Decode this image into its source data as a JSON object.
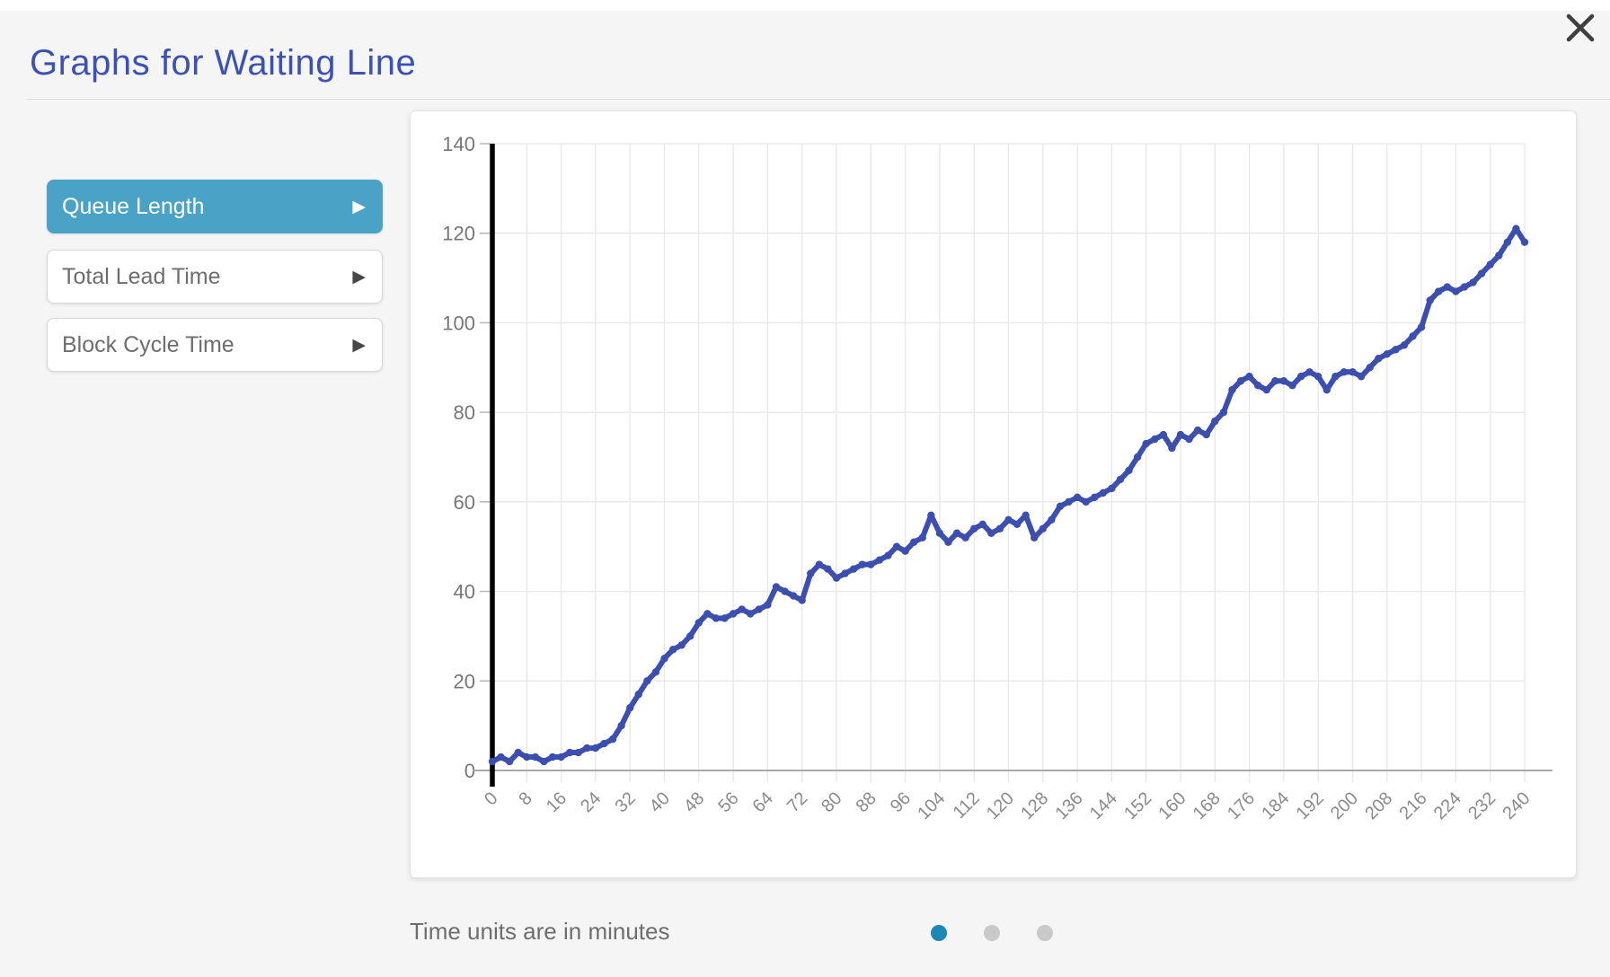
{
  "dialog": {
    "title": "Graphs for Waiting Line",
    "close_icon": "x-close"
  },
  "sidebar": {
    "arrow_icon": "▶",
    "items": [
      {
        "label": "Queue Length",
        "active": true
      },
      {
        "label": "Total Lead Time",
        "active": false
      },
      {
        "label": "Block Cycle Time",
        "active": false
      }
    ]
  },
  "footer": {
    "note": "Time units are in minutes",
    "pager": {
      "count": 3,
      "active": 0
    }
  },
  "colors": {
    "accent_teal": "#4aa3c7",
    "title_indigo": "#3c51b4",
    "line_indigo": "#3c4eae",
    "pager_active": "#1d87b8",
    "pager_inactive": "#c9c9c9",
    "grid": "#e8e8e8",
    "zero_line": "#a9a9a9",
    "axis_black": "#000000",
    "tick_label": "#8a8a8a",
    "y_label": "#767676"
  },
  "chart_data": {
    "type": "line",
    "title": "",
    "xlabel": "",
    "ylabel": "",
    "series_name": "Queue Length",
    "xlim": [
      0,
      240
    ],
    "ylim": [
      0,
      140
    ],
    "grid": true,
    "legend": "none",
    "x_ticks": [
      0,
      8,
      16,
      24,
      32,
      40,
      48,
      56,
      64,
      72,
      80,
      88,
      96,
      104,
      112,
      120,
      128,
      136,
      144,
      152,
      160,
      168,
      176,
      184,
      192,
      200,
      208,
      216,
      224,
      232,
      240
    ],
    "y_ticks": [
      0,
      20,
      40,
      60,
      80,
      100,
      120,
      140
    ],
    "x_start": 0,
    "x_step": 2,
    "x": [
      0,
      2,
      4,
      6,
      8,
      10,
      12,
      14,
      16,
      18,
      20,
      22,
      24,
      26,
      28,
      30,
      32,
      34,
      36,
      38,
      40,
      42,
      44,
      46,
      48,
      50,
      52,
      54,
      56,
      58,
      60,
      62,
      64,
      66,
      68,
      70,
      72,
      74,
      76,
      78,
      80,
      82,
      84,
      86,
      88,
      90,
      92,
      94,
      96,
      98,
      100,
      102,
      104,
      106,
      108,
      110,
      112,
      114,
      116,
      118,
      120,
      122,
      124,
      126,
      128,
      130,
      132,
      134,
      136,
      138,
      140,
      142,
      144,
      146,
      148,
      150,
      152,
      154,
      156,
      158,
      160,
      162,
      164,
      166,
      168,
      170,
      172,
      174,
      176,
      178,
      180,
      182,
      184,
      186,
      188,
      190,
      192,
      194,
      196,
      198,
      200,
      202,
      204,
      206,
      208,
      210,
      212,
      214,
      216,
      218,
      220,
      222,
      224,
      226,
      228,
      230,
      232,
      234,
      236,
      238,
      240
    ],
    "values": [
      2,
      3,
      2,
      4,
      3,
      3,
      2,
      3,
      3,
      4,
      4,
      5,
      5,
      6,
      7,
      10,
      14,
      17,
      20,
      22,
      25,
      27,
      28,
      30,
      33,
      35,
      34,
      34,
      35,
      36,
      35,
      36,
      37,
      41,
      40,
      39,
      38,
      44,
      46,
      45,
      43,
      44,
      45,
      46,
      46,
      47,
      48,
      50,
      49,
      51,
      52,
      57,
      53,
      51,
      53,
      52,
      54,
      55,
      53,
      54,
      56,
      55,
      57,
      52,
      54,
      56,
      59,
      60,
      61,
      60,
      61,
      62,
      63,
      65,
      67,
      70,
      73,
      74,
      75,
      72,
      75,
      74,
      76,
      75,
      78,
      80,
      85,
      87,
      88,
      86,
      85,
      87,
      87,
      86,
      88,
      89,
      88,
      85,
      88,
      89,
      89,
      88,
      90,
      92,
      93,
      94,
      95,
      97,
      99,
      105,
      107,
      108,
      107,
      108,
      109,
      111,
      113,
      115,
      118,
      121,
      118
    ]
  }
}
